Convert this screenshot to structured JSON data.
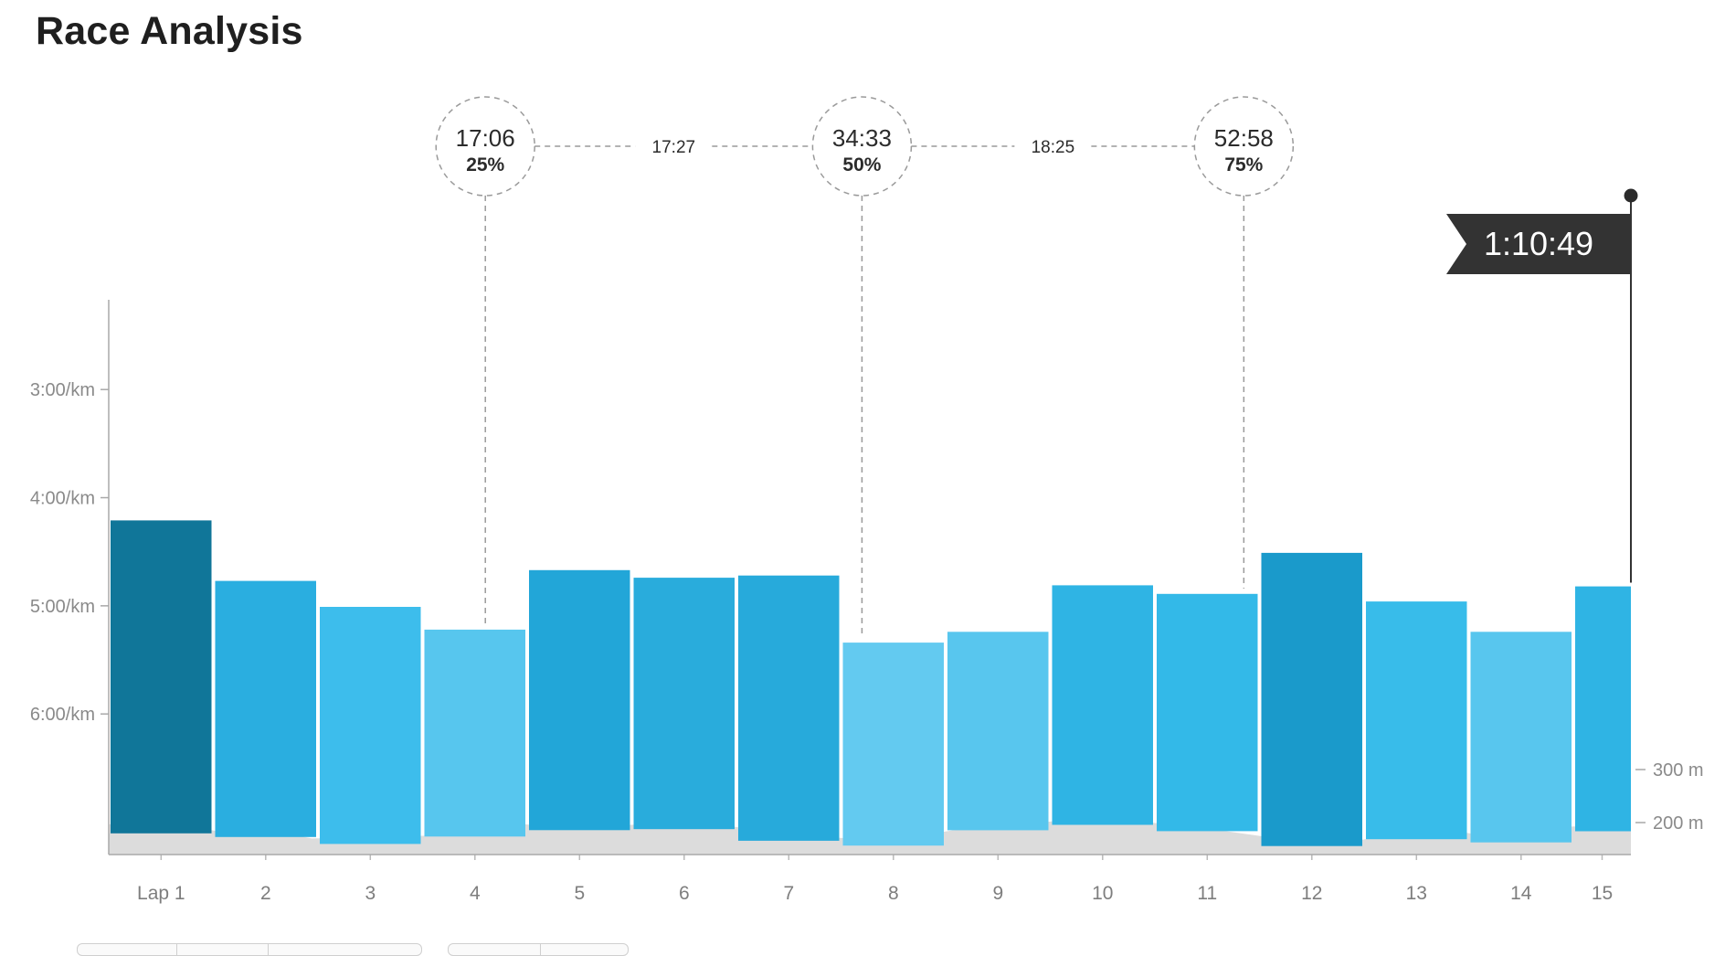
{
  "page": {
    "title": "Race Analysis"
  },
  "chart_data": {
    "type": "bar",
    "title": "",
    "y_axis": {
      "kind": "pace",
      "unit": "/km",
      "inverted": true,
      "range_min_per_km": [
        2.17,
        7.3
      ],
      "ticks": [
        {
          "value": 3,
          "label": "3:00/km"
        },
        {
          "value": 4,
          "label": "4:00/km"
        },
        {
          "value": 5,
          "label": "5:00/km"
        },
        {
          "value": 6,
          "label": "6:00/km"
        }
      ]
    },
    "elevation_axis": {
      "unit": "m",
      "ticks": [
        {
          "value": 300,
          "label": "300 m"
        },
        {
          "value": 200,
          "label": "200 m"
        }
      ],
      "range_m": [
        140,
        400
      ]
    },
    "laps": [
      {
        "label": "Lap 1",
        "pace_min_per_km": 4.21,
        "color": "#107699",
        "distance_share": 1
      },
      {
        "label": "2",
        "pace_min_per_km": 4.77,
        "color": "#2aaee0",
        "distance_share": 1
      },
      {
        "label": "3",
        "pace_min_per_km": 5.01,
        "color": "#3dbdec",
        "distance_share": 1
      },
      {
        "label": "4",
        "pace_min_per_km": 5.22,
        "color": "#57c6ee",
        "distance_share": 1
      },
      {
        "label": "5",
        "pace_min_per_km": 4.67,
        "color": "#22a6d8",
        "distance_share": 1
      },
      {
        "label": "6",
        "pace_min_per_km": 4.74,
        "color": "#29acdc",
        "distance_share": 1
      },
      {
        "label": "7",
        "pace_min_per_km": 4.72,
        "color": "#27aadb",
        "distance_share": 1
      },
      {
        "label": "8",
        "pace_min_per_km": 5.34,
        "color": "#63caf0",
        "distance_share": 1
      },
      {
        "label": "9",
        "pace_min_per_km": 5.24,
        "color": "#58c6ee",
        "distance_share": 1
      },
      {
        "label": "10",
        "pace_min_per_km": 4.81,
        "color": "#2fb4e4",
        "distance_share": 1
      },
      {
        "label": "11",
        "pace_min_per_km": 4.89,
        "color": "#33b9e8",
        "distance_share": 1
      },
      {
        "label": "12",
        "pace_min_per_km": 4.51,
        "color": "#1a9acb",
        "distance_share": 1
      },
      {
        "label": "13",
        "pace_min_per_km": 4.96,
        "color": "#38bcea",
        "distance_share": 1
      },
      {
        "label": "14",
        "pace_min_per_km": 5.24,
        "color": "#58c6ee",
        "distance_share": 1
      },
      {
        "label": "15",
        "pace_min_per_km": 4.82,
        "color": "#2fb4e4",
        "distance_share": 0.55
      }
    ],
    "elevation_profile_m": [
      197,
      192,
      190,
      186,
      175,
      183,
      170,
      171,
      170,
      175,
      175,
      184,
      199,
      192,
      196,
      194,
      198,
      198,
      196,
      188,
      176,
      173,
      170,
      167,
      175,
      186,
      196,
      196,
      203,
      206,
      203,
      199,
      194,
      184,
      175,
      166,
      166,
      167,
      177,
      179,
      182,
      172,
      173,
      192,
      194,
      196
    ],
    "splits": [
      {
        "time": "17:06",
        "percent": "25%",
        "lap_position": 3.6
      },
      {
        "time": "34:33",
        "percent": "50%",
        "lap_position": 7.2
      },
      {
        "time": "52:58",
        "percent": "75%",
        "lap_position": 10.85
      }
    ],
    "segment_times": [
      {
        "label": "17:27"
      },
      {
        "label": "18:25"
      }
    ],
    "finish": {
      "time": "1:10:49"
    },
    "grid": false,
    "legend": "none"
  }
}
